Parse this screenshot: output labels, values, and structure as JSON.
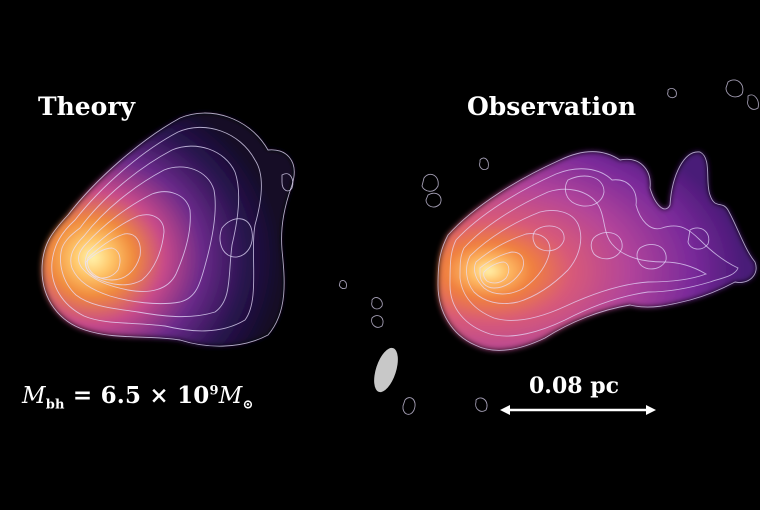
{
  "panels": {
    "left": {
      "title": "Theory"
    },
    "right": {
      "title": "Observation"
    }
  },
  "annotations": {
    "mass_symbol": "M",
    "mass_subscript": "bh",
    "mass_equals": " = 6.5 × 10",
    "mass_exponent": "9",
    "mass_unit": "M",
    "mass_unit_symbol": "⊙",
    "scale_bar_label": "0.08 pc"
  },
  "colors": {
    "background": "#000000",
    "contour": "#e8e0ff",
    "core": "#fff6b0",
    "mid": "#f08a3c",
    "outer": "#b03a9a",
    "haze": "#3a1a5c",
    "beam": "#c8c8c8",
    "scale_bar": "#ffffff"
  }
}
